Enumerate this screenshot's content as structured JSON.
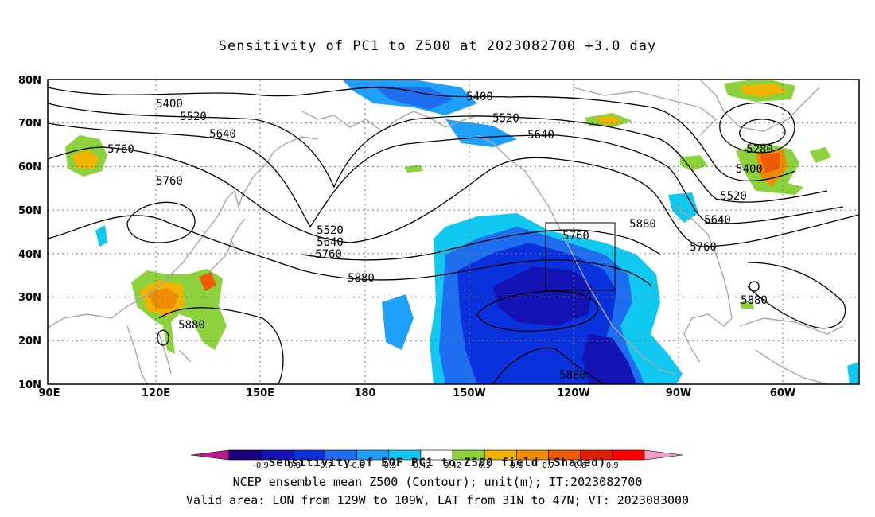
{
  "title": "Sensitivity of PC1 to Z500 at 2023082700 +3.0 day",
  "lat_labels": [
    "80N",
    "70N",
    "60N",
    "50N",
    "40N",
    "30N",
    "20N",
    "10N"
  ],
  "lon_labels": [
    "90E",
    "120E",
    "150E",
    "180",
    "150W",
    "120W",
    "90W",
    "60W"
  ],
  "contour_labels": [
    "5400",
    "5520",
    "5640",
    "5760",
    "5760",
    "5880",
    "5880",
    "5520",
    "5640",
    "5760",
    "5400",
    "5520",
    "5640",
    "5760",
    "5880",
    "5280",
    "5400",
    "5520",
    "5640",
    "5760",
    "5880",
    "5880"
  ],
  "colorbar": {
    "ticks": [
      "-0.9",
      "-0.8",
      "-0.7",
      "-0.6",
      "-0.5",
      "-0.42",
      "0.42",
      "0.5",
      "0.6",
      "0.7",
      "0.8",
      "0.9"
    ],
    "colors": [
      "#b81c8a",
      "#18007a",
      "#1414b4",
      "#0a32dc",
      "#1e6ef0",
      "#1ea0ff",
      "#10c8f0",
      "#ffffff",
      "#8cd23c",
      "#f0b400",
      "#f08c00",
      "#f05a00",
      "#e61e00",
      "#ff0000",
      "#f0a0c8"
    ],
    "title": "Sensitivity of EOF PC1 to Z500 field (Shaded)"
  },
  "caption_line1": "NCEP ensemble mean Z500 (Contour); unit(m); IT:2023082700",
  "caption_line2": "Valid area: LON from 129W to 109W, LAT from 31N to 47N; VT: 2023083000"
}
